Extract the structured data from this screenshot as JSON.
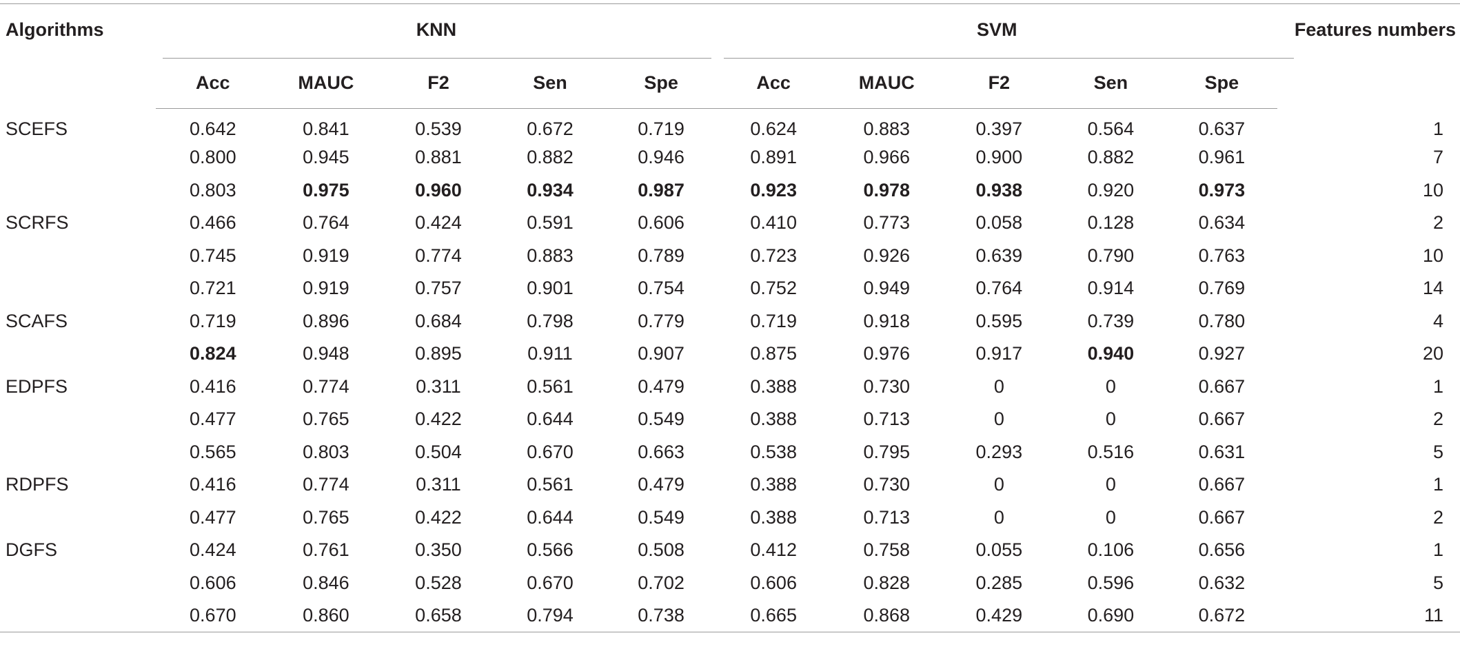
{
  "header": {
    "algorithms_label": "Algorithms",
    "features_label": "Features numbers",
    "groups": [
      "KNN",
      "SVM"
    ],
    "metrics": [
      "Acc",
      "MAUC",
      "F2",
      "Sen",
      "Spe"
    ]
  },
  "rows": [
    {
      "alg": "SCEFS",
      "vals": [
        "0.642",
        "0.841",
        "0.539",
        "0.672",
        "0.719",
        "0.624",
        "0.883",
        "0.397",
        "0.564",
        "0.637"
      ],
      "bold": [],
      "feat": "1"
    },
    {
      "alg": "",
      "vals": [
        "0.800",
        "0.945",
        "0.881",
        "0.882",
        "0.946",
        "0.891",
        "0.966",
        "0.900",
        "0.882",
        "0.961"
      ],
      "bold": [],
      "feat": "7"
    },
    {
      "alg": "",
      "vals": [
        "0.803",
        "0.975",
        "0.960",
        "0.934",
        "0.987",
        "0.923",
        "0.978",
        "0.938",
        "0.920",
        "0.973"
      ],
      "bold": [
        1,
        2,
        3,
        4,
        5,
        6,
        7,
        9
      ],
      "feat": "10"
    },
    {
      "alg": "SCRFS",
      "vals": [
        "0.466",
        "0.764",
        "0.424",
        "0.591",
        "0.606",
        "0.410",
        "0.773",
        "0.058",
        "0.128",
        "0.634"
      ],
      "bold": [],
      "feat": "2"
    },
    {
      "alg": "",
      "vals": [
        "0.745",
        "0.919",
        "0.774",
        "0.883",
        "0.789",
        "0.723",
        "0.926",
        "0.639",
        "0.790",
        "0.763"
      ],
      "bold": [],
      "feat": "10"
    },
    {
      "alg": "",
      "vals": [
        "0.721",
        "0.919",
        "0.757",
        "0.901",
        "0.754",
        "0.752",
        "0.949",
        "0.764",
        "0.914",
        "0.769"
      ],
      "bold": [],
      "feat": "14"
    },
    {
      "alg": "SCAFS",
      "vals": [
        "0.719",
        "0.896",
        "0.684",
        "0.798",
        "0.779",
        "0.719",
        "0.918",
        "0.595",
        "0.739",
        "0.780"
      ],
      "bold": [],
      "feat": "4"
    },
    {
      "alg": "",
      "vals": [
        "0.824",
        "0.948",
        "0.895",
        "0.911",
        "0.907",
        "0.875",
        "0.976",
        "0.917",
        "0.940",
        "0.927"
      ],
      "bold": [
        0,
        8
      ],
      "feat": "20"
    },
    {
      "alg": "EDPFS",
      "vals": [
        "0.416",
        "0.774",
        "0.311",
        "0.561",
        "0.479",
        "0.388",
        "0.730",
        "0",
        "0",
        "0.667"
      ],
      "bold": [],
      "feat": "1"
    },
    {
      "alg": "",
      "vals": [
        "0.477",
        "0.765",
        "0.422",
        "0.644",
        "0.549",
        "0.388",
        "0.713",
        "0",
        "0",
        "0.667"
      ],
      "bold": [],
      "feat": "2"
    },
    {
      "alg": "",
      "vals": [
        "0.565",
        "0.803",
        "0.504",
        "0.670",
        "0.663",
        "0.538",
        "0.795",
        "0.293",
        "0.516",
        "0.631"
      ],
      "bold": [],
      "feat": "5"
    },
    {
      "alg": "RDPFS",
      "vals": [
        "0.416",
        "0.774",
        "0.311",
        "0.561",
        "0.479",
        "0.388",
        "0.730",
        "0",
        "0",
        "0.667"
      ],
      "bold": [],
      "feat": "1"
    },
    {
      "alg": "",
      "vals": [
        "0.477",
        "0.765",
        "0.422",
        "0.644",
        "0.549",
        "0.388",
        "0.713",
        "0",
        "0",
        "0.667"
      ],
      "bold": [],
      "feat": "2"
    },
    {
      "alg": "DGFS",
      "vals": [
        "0.424",
        "0.761",
        "0.350",
        "0.566",
        "0.508",
        "0.412",
        "0.758",
        "0.055",
        "0.106",
        "0.656"
      ],
      "bold": [],
      "feat": "1"
    },
    {
      "alg": "",
      "vals": [
        "0.606",
        "0.846",
        "0.528",
        "0.670",
        "0.702",
        "0.606",
        "0.828",
        "0.285",
        "0.596",
        "0.632"
      ],
      "bold": [],
      "feat": "5"
    },
    {
      "alg": "",
      "vals": [
        "0.670",
        "0.860",
        "0.658",
        "0.794",
        "0.738",
        "0.665",
        "0.868",
        "0.429",
        "0.690",
        "0.672"
      ],
      "bold": [],
      "feat": "11"
    }
  ]
}
